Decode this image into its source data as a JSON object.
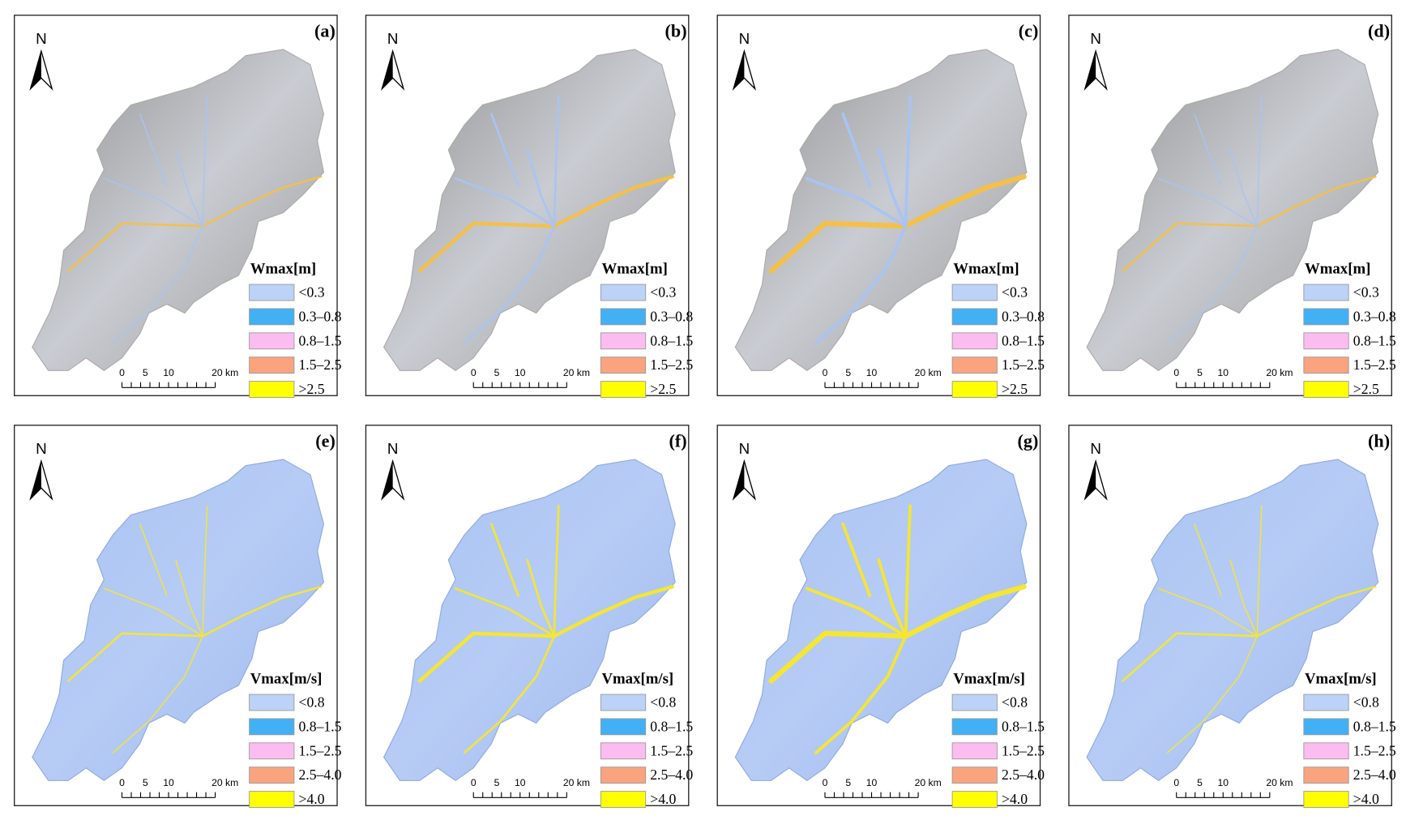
{
  "north": "N",
  "scale_labels": [
    "0",
    "5",
    "10",
    "20 km"
  ],
  "rows": [
    {
      "legend_title": "Wmax[m]",
      "panels": [
        "(a)",
        "(b)",
        "(c)",
        "(d)"
      ],
      "legend": [
        {
          "label": "<0.3",
          "color": "#bcd2f7"
        },
        {
          "label": "0.3–0.8",
          "color": "#42b0f5"
        },
        {
          "label": "0.8–1.5",
          "color": "#fbbcf0"
        },
        {
          "label": "1.5–2.5",
          "color": "#f9a47e"
        },
        {
          "label": ">2.5",
          "color": "#ffff00"
        }
      ]
    },
    {
      "legend_title": "Vmax[m/s]",
      "panels": [
        "(e)",
        "(f)",
        "(g)",
        "(h)"
      ],
      "legend": [
        {
          "label": "<0.8",
          "color": "#bcd2f7"
        },
        {
          "label": "0.8–1.5",
          "color": "#42b0f5"
        },
        {
          "label": "1.5–2.5",
          "color": "#fbbcf0"
        },
        {
          "label": "2.5–4.0",
          "color": "#f9a47e"
        },
        {
          "label": ">4.0",
          "color": "#ffff00"
        }
      ]
    }
  ]
}
